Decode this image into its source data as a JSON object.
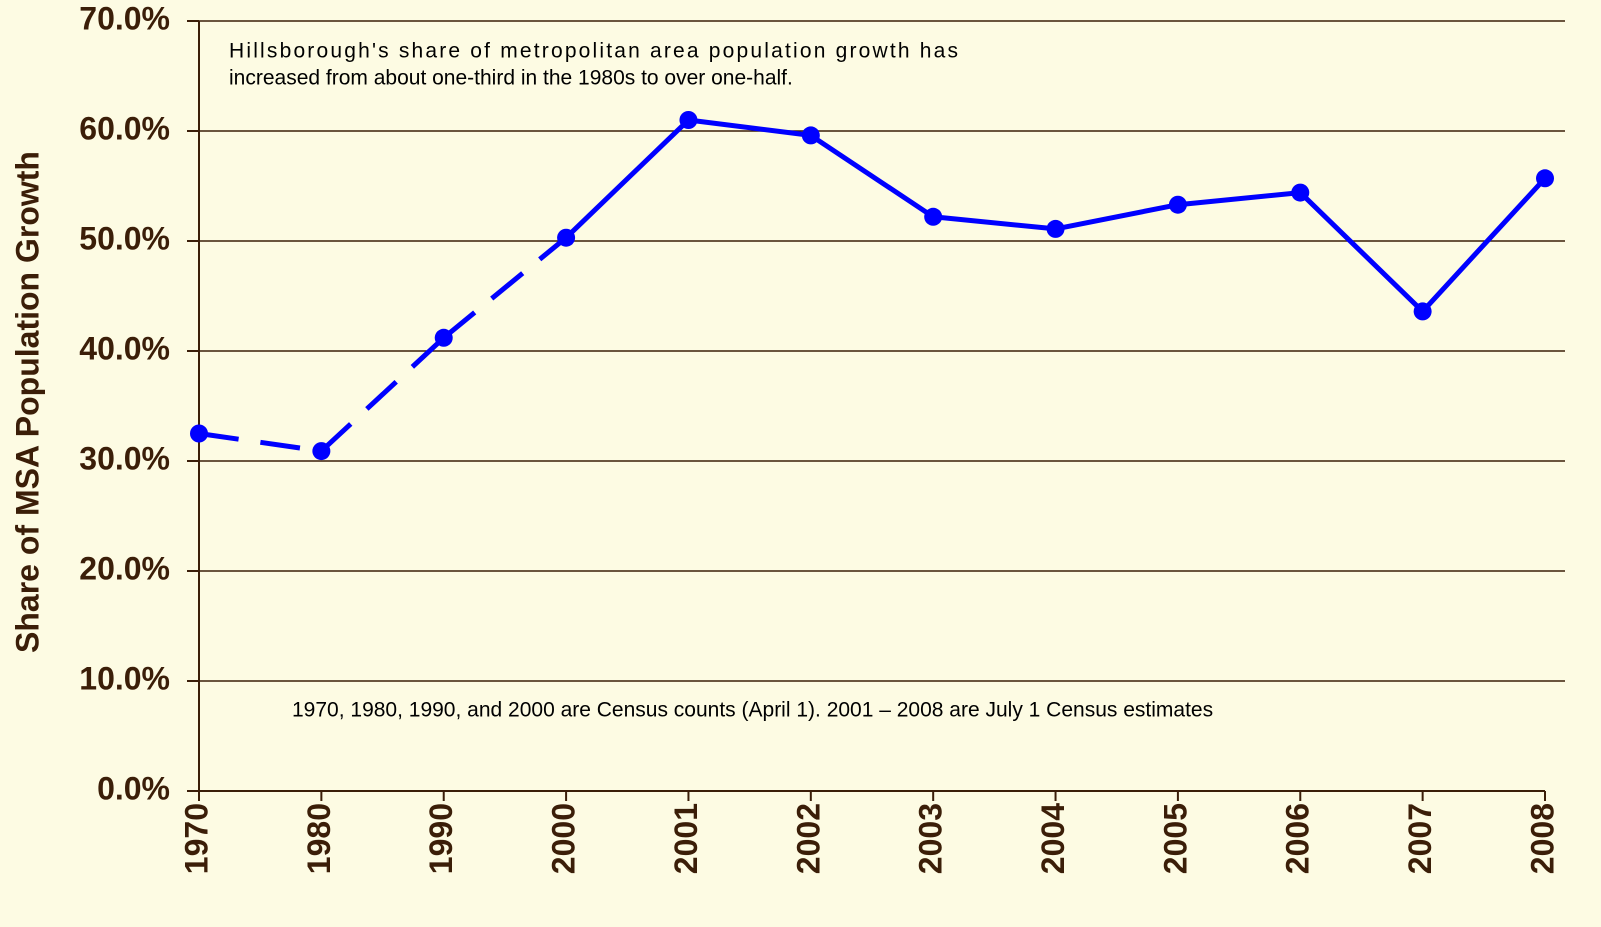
{
  "chart_data": {
    "type": "line",
    "y_label": "Share of MSA Population Growth",
    "annotations": [
      [
        "Hillsborough's share of metropolitan area population growth has",
        "increased from about one-third in the 1980s to over one-half."
      ],
      [
        "1970, 1980, 1990, and 2000 are Census counts (April 1).  2001 – 2008 are July 1 Census estimates"
      ]
    ],
    "categories": [
      "1970",
      "1980",
      "1990",
      "2000",
      "2001",
      "2002",
      "2003",
      "2004",
      "2005",
      "2006",
      "2007",
      "2008"
    ],
    "series": [
      {
        "color": "#0000ff",
        "values": [
          32.5,
          30.9,
          41.2,
          50.3,
          61.0,
          59.6,
          52.2,
          51.1,
          53.3,
          54.4,
          43.6,
          55.7
        ],
        "segment_styles": [
          "dashed",
          "dashed",
          "dashed",
          "solid",
          "solid",
          "solid",
          "solid",
          "solid",
          "solid",
          "solid",
          "solid"
        ]
      }
    ],
    "ylim": [
      0,
      70
    ],
    "yticks": [
      {
        "value": 0,
        "label": "0.0%"
      },
      {
        "value": 10,
        "label": "10.0%"
      },
      {
        "value": 20,
        "label": "20.0%"
      },
      {
        "value": 30,
        "label": "30.0%"
      },
      {
        "value": 40,
        "label": "40.0%"
      },
      {
        "value": 50,
        "label": "50.0%"
      },
      {
        "value": 60,
        "label": "60.0%"
      },
      {
        "value": 70,
        "label": "70.0%"
      }
    ],
    "grid": true
  }
}
